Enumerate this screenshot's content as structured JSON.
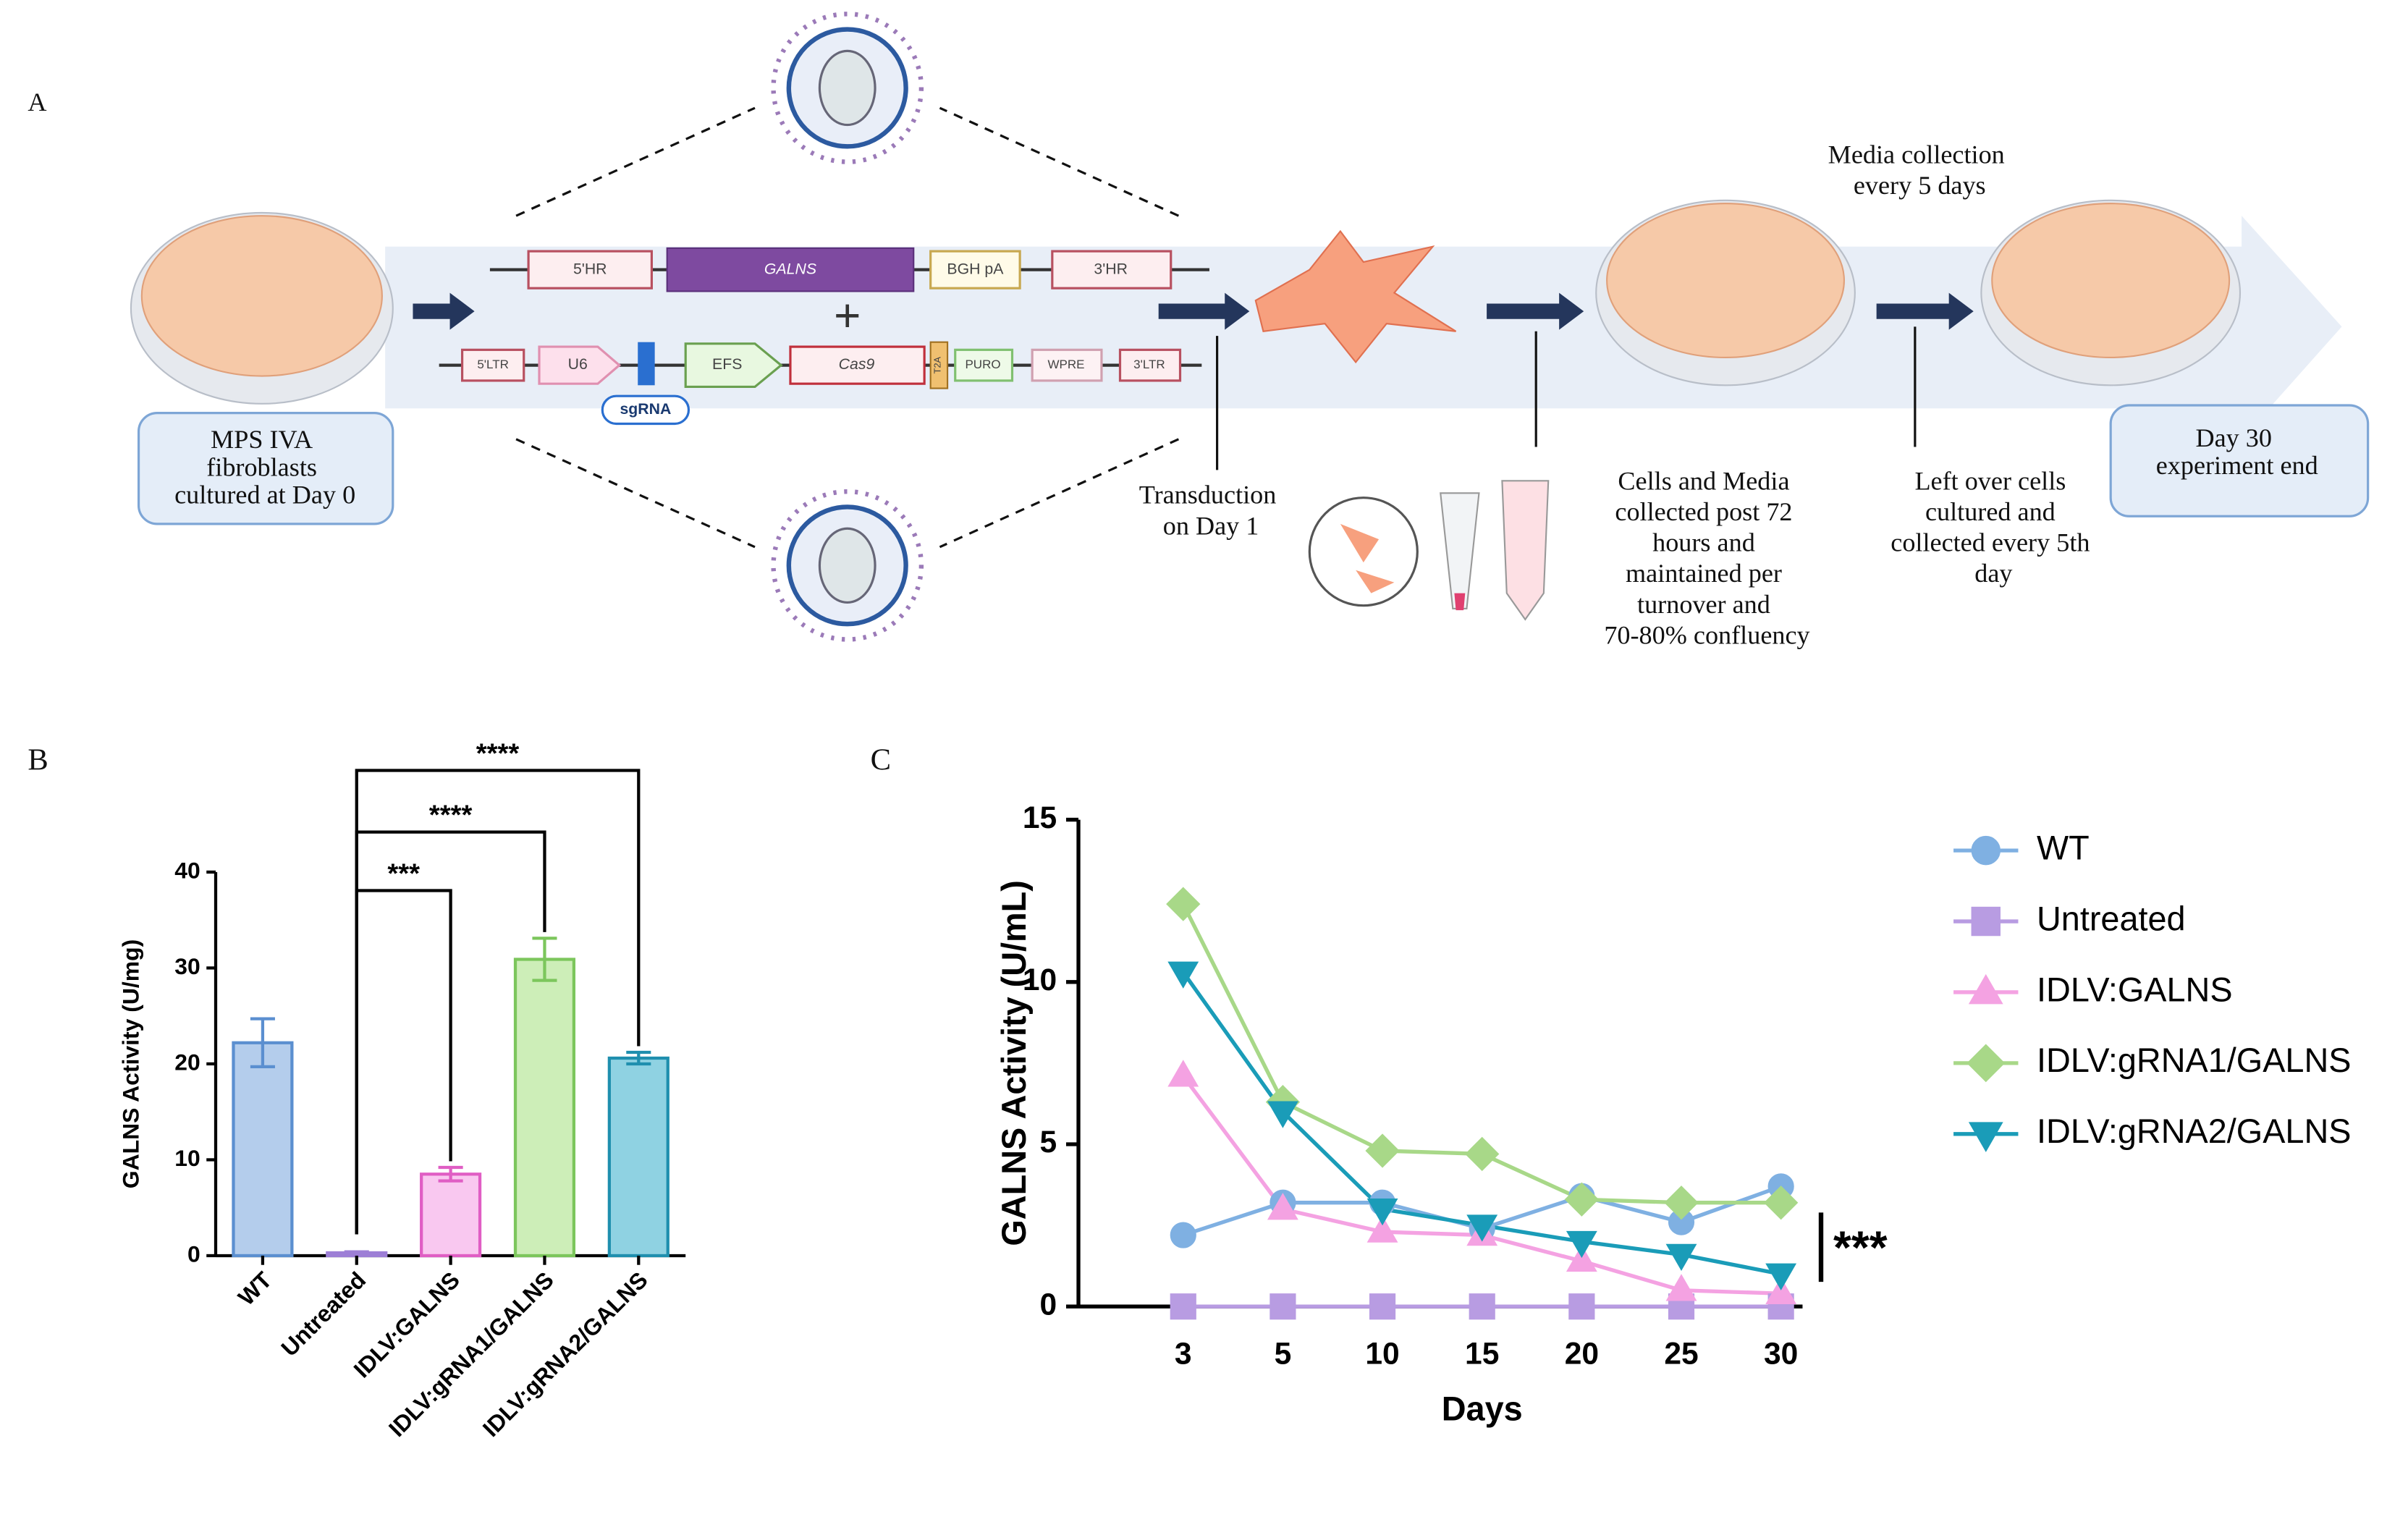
{
  "diagram": {
    "panel_label": "A",
    "donor": [
      "5'HR",
      "GALNS",
      "BGH pA",
      "3'HR"
    ],
    "vector": [
      "5'LTR",
      "U6",
      "EFS",
      "Cas9",
      "T2A",
      "PURO",
      "WPRE",
      "3'LTR"
    ],
    "guide": "sgRNA",
    "start_box": [
      "MPS IVA",
      "fibroblasts",
      "cultured at Day 0"
    ],
    "transduction": [
      "Transduction",
      "on Day 1"
    ],
    "collection": [
      "Cells and Media",
      "collected post 72",
      "hours and",
      "maintained per",
      "turnover and",
      "70-80% confluency"
    ],
    "media": [
      "Media collection",
      "every 5 days"
    ],
    "leftover": [
      "Left over cells",
      "cultured and",
      "collected every 5th",
      "day"
    ],
    "end_box": [
      "Day 30",
      "experiment end"
    ]
  },
  "chart_data": [
    {
      "type": "bar",
      "panel_label": "B",
      "ylabel": "GALNS Activity (U/mg)",
      "categories": [
        "WT",
        "Untreated",
        "IDLV:GALNS",
        "IDLV:gRNA1/GALNS",
        "IDLV:gRNA2/GALNS"
      ],
      "values": [
        22.2,
        0.3,
        8.5,
        30.9,
        20.6
      ],
      "errors": [
        2.5,
        0.1,
        0.7,
        2.2,
        0.6
      ],
      "colors": [
        "#b4cdec",
        "#d6c4f0",
        "#f9c8f0",
        "#cdeeb8",
        "#8fd2e2"
      ],
      "edge_colors": [
        "#5b8fd0",
        "#9d7fd6",
        "#e05ec4",
        "#7cc65c",
        "#1f8fae"
      ],
      "annotations": [
        "***",
        "****",
        "****"
      ],
      "ylim": [
        0,
        40
      ],
      "yticks": [
        0,
        10,
        20,
        30,
        40
      ]
    },
    {
      "type": "line",
      "panel_label": "C",
      "ylabel": "GALNS Activity (U/mL)",
      "xlabel": "Days",
      "categories": [
        "3",
        "5",
        "10",
        "15",
        "20",
        "25",
        "30"
      ],
      "series": [
        {
          "name": "WT",
          "color": "#7fb0e2",
          "marker": "circle",
          "values": [
            2.2,
            3.2,
            3.2,
            2.4,
            3.4,
            2.6,
            3.7
          ]
        },
        {
          "name": "Untreated",
          "color": "#b89ce2",
          "marker": "square",
          "values": [
            0,
            0,
            0,
            0,
            0,
            0,
            0
          ]
        },
        {
          "name": "IDLV:GALNS",
          "color": "#f4a2e2",
          "marker": "triangle-up",
          "values": [
            7.1,
            3.0,
            2.3,
            2.2,
            1.4,
            0.5,
            0.4
          ]
        },
        {
          "name": "IDLV:gRNA1/GALNS",
          "color": "#a8d888",
          "marker": "diamond",
          "values": [
            12.4,
            6.3,
            4.8,
            4.7,
            3.3,
            3.2,
            3.2
          ]
        },
        {
          "name": "IDLV:gRNA2/GALNS",
          "color": "#1a9cb8",
          "marker": "triangle-down",
          "values": [
            10.3,
            6.0,
            3.0,
            2.5,
            2.0,
            1.6,
            1.0
          ]
        }
      ],
      "annotation": "***",
      "ylim": [
        0,
        15
      ],
      "yticks": [
        0,
        5,
        10,
        15
      ],
      "legend": "right"
    }
  ]
}
